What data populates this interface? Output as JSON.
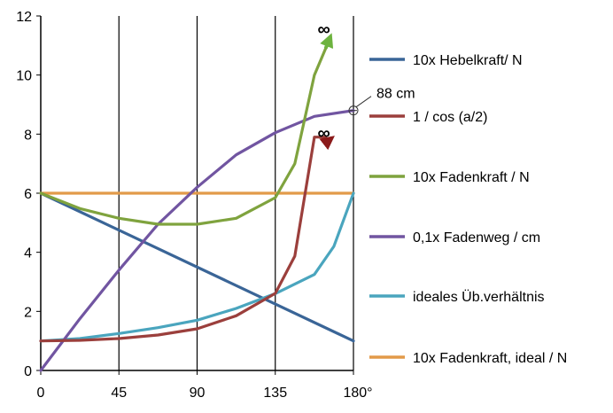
{
  "chart_data": {
    "type": "line",
    "title": "",
    "xlabel": "",
    "ylabel": "",
    "xlim": [
      0,
      180
    ],
    "ylim": [
      0,
      12
    ],
    "x_ticks": [
      "0",
      "45",
      "90",
      "135",
      "180°"
    ],
    "y_ticks": [
      "0",
      "2",
      "4",
      "6",
      "8",
      "10",
      "12"
    ],
    "grid": "vertical lines at 45, 90, 135, 180; horizontal line at 6",
    "legend_position": "right",
    "series": [
      {
        "name": "10x Hebelkraft/ N",
        "color": "#3A6597",
        "x": [
          0,
          180
        ],
        "y": [
          6,
          1
        ]
      },
      {
        "name": "1 / cos (a/2)",
        "color": "#9B3F3C",
        "x": [
          0,
          22.5,
          45,
          67.5,
          90,
          112.5,
          135,
          146.25,
          157.5,
          164
        ],
        "y": [
          1.0,
          1.02,
          1.08,
          1.2,
          1.41,
          1.85,
          2.61,
          3.87,
          7.9,
          7.9
        ]
      },
      {
        "name": "10x Fadenkraft  / N",
        "color": "#7FA33E",
        "x": [
          0,
          22.5,
          45,
          67.5,
          90,
          112.5,
          135,
          146.25,
          157.5,
          164
        ],
        "y": [
          6.0,
          5.48,
          5.15,
          4.95,
          4.95,
          5.15,
          5.85,
          7.0,
          10.0,
          10.9
        ]
      },
      {
        "name": "0,1x Fadenweg / cm",
        "color": "#7155A1",
        "x": [
          0,
          22.5,
          45,
          67.5,
          90,
          112.5,
          135,
          157.5,
          180
        ],
        "y": [
          0,
          1.75,
          3.4,
          4.95,
          6.2,
          7.3,
          8.05,
          8.6,
          8.8
        ]
      },
      {
        "name": "ideales Üb.verhältnis",
        "color": "#4AA5BE",
        "x": [
          0,
          22.5,
          45,
          67.5,
          90,
          112.5,
          135,
          157.5,
          168.75,
          180
        ],
        "y": [
          1.0,
          1.08,
          1.25,
          1.45,
          1.7,
          2.1,
          2.6,
          3.25,
          4.2,
          6.0
        ]
      },
      {
        "name": "10x Fadenkraft, ideal / N",
        "color": "#E29A49",
        "x": [
          0,
          180
        ],
        "y": [
          6,
          6
        ]
      }
    ],
    "annotations": [
      {
        "text": "88 cm",
        "x": 180,
        "y": 8.8
      },
      {
        "text": "∞",
        "series": "10x Fadenkraft  / N",
        "x": 164,
        "y": 11.3
      },
      {
        "text": "∞",
        "series": "1 / cos (a/2)",
        "x": 164,
        "y": 8.2
      }
    ]
  }
}
